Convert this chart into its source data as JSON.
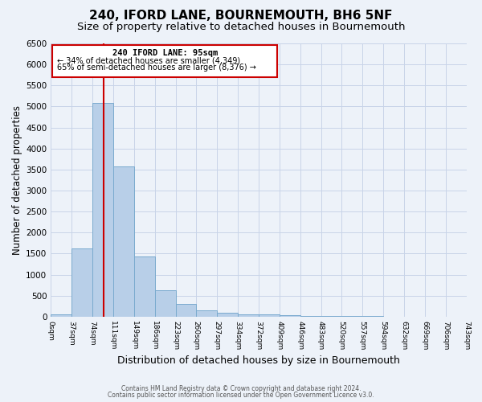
{
  "title": "240, IFORD LANE, BOURNEMOUTH, BH6 5NF",
  "subtitle": "Size of property relative to detached houses in Bournemouth",
  "xlabel": "Distribution of detached houses by size in Bournemouth",
  "ylabel": "Number of detached properties",
  "bin_edges": [
    0,
    37,
    74,
    111,
    149,
    186,
    223,
    260,
    297,
    334,
    372,
    409,
    446,
    483,
    520,
    557,
    594,
    632,
    669,
    706,
    743
  ],
  "counts": [
    50,
    1620,
    5080,
    3580,
    1430,
    620,
    310,
    150,
    100,
    60,
    50,
    30,
    20,
    15,
    10,
    8,
    5,
    3,
    2,
    1
  ],
  "bar_color": "#b8cfe8",
  "bar_edge_color": "#7aaace",
  "bar_alpha": 1.0,
  "vline_x": 95,
  "vline_color": "#cc0000",
  "ylim": [
    0,
    6500
  ],
  "annotation_title": "240 IFORD LANE: 95sqm",
  "annotation_line1": "← 34% of detached houses are smaller (4,349)",
  "annotation_line2": "65% of semi-detached houses are larger (8,376) →",
  "annotation_box_color": "#cc0000",
  "grid_color": "#c8d4e8",
  "background_color": "#edf2f9",
  "footer_line1": "Contains HM Land Registry data © Crown copyright and database right 2024.",
  "footer_line2": "Contains public sector information licensed under the Open Government Licence v3.0.",
  "title_fontsize": 11,
  "subtitle_fontsize": 9.5,
  "xlabel_fontsize": 9,
  "ylabel_fontsize": 8.5,
  "yticks": [
    0,
    500,
    1000,
    1500,
    2000,
    2500,
    3000,
    3500,
    4000,
    4500,
    5000,
    5500,
    6000,
    6500
  ]
}
